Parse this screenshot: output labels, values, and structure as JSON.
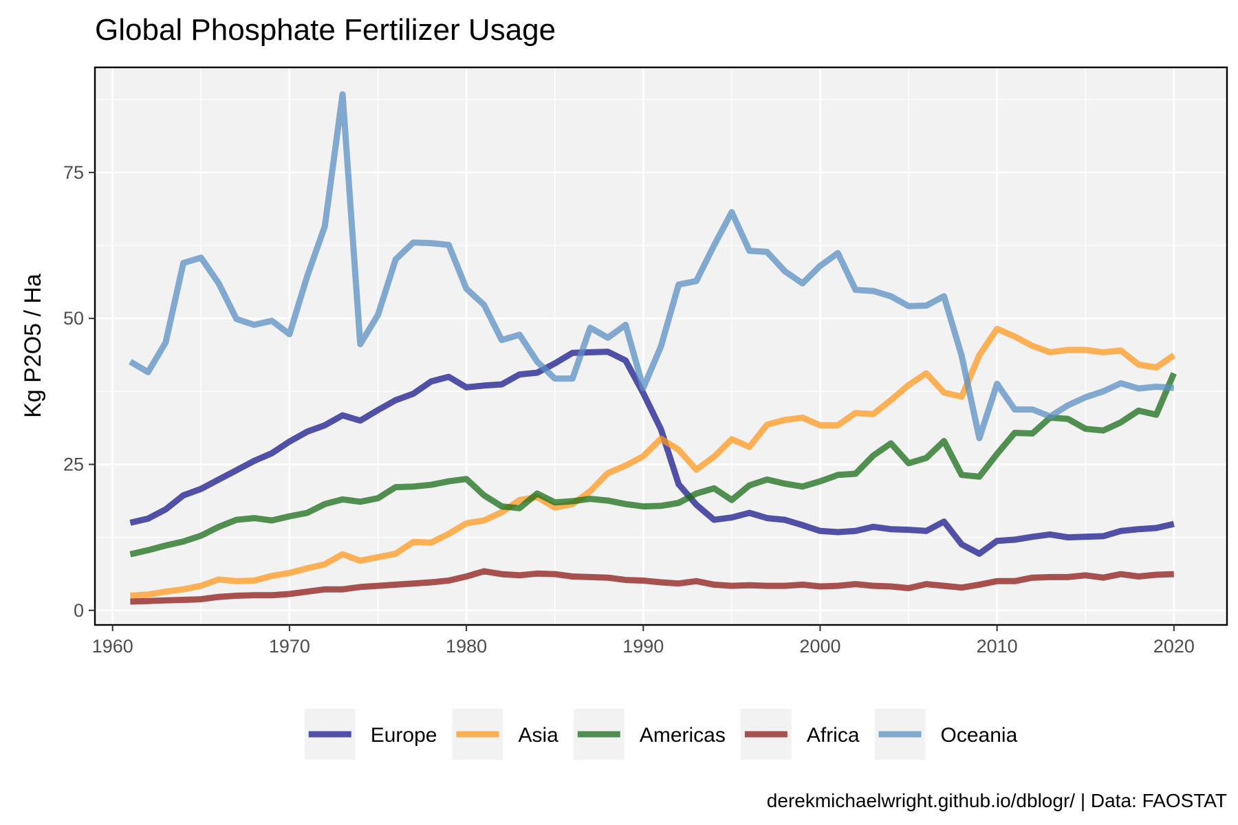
{
  "chart_data": {
    "type": "line",
    "title": "Global Phosphate Fertilizer Usage",
    "xlabel": "",
    "ylabel": "Kg P2O5 / Ha",
    "caption": "derekmichaelwright.github.io/dblogr/ | Data: FAOSTAT",
    "xlim": [
      1959,
      2023
    ],
    "ylim": [
      -2.5,
      93
    ],
    "x_ticks": [
      1960,
      1970,
      1980,
      1990,
      2000,
      2010,
      2020
    ],
    "y_ticks": [
      0,
      25,
      50,
      75
    ],
    "grid": true,
    "legend_position": "bottom",
    "x": [
      1961,
      1962,
      1963,
      1964,
      1965,
      1966,
      1967,
      1968,
      1969,
      1970,
      1971,
      1972,
      1973,
      1974,
      1975,
      1976,
      1977,
      1978,
      1979,
      1980,
      1981,
      1982,
      1983,
      1984,
      1985,
      1986,
      1987,
      1988,
      1989,
      1990,
      1991,
      1992,
      1993,
      1994,
      1995,
      1996,
      1997,
      1998,
      1999,
      2000,
      2001,
      2002,
      2003,
      2004,
      2005,
      2006,
      2007,
      2008,
      2009,
      2010,
      2011,
      2012,
      2013,
      2014,
      2015,
      2016,
      2017,
      2018,
      2019,
      2020
    ],
    "series": [
      {
        "name": "Europe",
        "color": "#1a1a8c",
        "values": [
          15.0,
          15.7,
          17.3,
          19.7,
          20.8,
          22.4,
          24.0,
          25.6,
          26.9,
          28.9,
          30.6,
          31.7,
          33.4,
          32.5,
          34.3,
          36.0,
          37.1,
          39.2,
          40.0,
          38.2,
          38.5,
          38.7,
          40.4,
          40.7,
          42.3,
          44.1,
          44.2,
          44.3,
          42.8,
          37.2,
          31.0,
          21.6,
          18.1,
          15.5,
          15.9,
          16.7,
          15.8,
          15.5,
          14.6,
          13.6,
          13.4,
          13.6,
          14.3,
          13.9,
          13.8,
          13.6,
          15.2,
          11.3,
          9.7,
          11.9,
          12.1,
          12.6,
          13.0,
          12.5,
          12.6,
          12.7,
          13.6,
          13.9,
          14.1,
          14.8
        ]
      },
      {
        "name": "Asia",
        "color": "#ff9922",
        "values": [
          2.5,
          2.7,
          3.2,
          3.6,
          4.2,
          5.3,
          5.0,
          5.1,
          5.9,
          6.4,
          7.2,
          7.9,
          9.6,
          8.5,
          9.1,
          9.7,
          11.7,
          11.6,
          13.1,
          14.9,
          15.4,
          16.8,
          18.9,
          19.4,
          17.6,
          18.2,
          20.4,
          23.5,
          24.8,
          26.4,
          29.4,
          27.5,
          24.1,
          26.3,
          29.3,
          28.0,
          31.8,
          32.6,
          33.0,
          31.7,
          31.7,
          33.8,
          33.6,
          36.0,
          38.6,
          40.6,
          37.3,
          36.6,
          43.7,
          48.2,
          46.9,
          45.3,
          44.2,
          44.6,
          44.6,
          44.2,
          44.5,
          42.1,
          41.6,
          43.7
        ]
      },
      {
        "name": "Americas",
        "color": "#1a6e1a",
        "values": [
          9.6,
          10.3,
          11.1,
          11.8,
          12.8,
          14.3,
          15.5,
          15.8,
          15.4,
          16.1,
          16.7,
          18.2,
          19.0,
          18.6,
          19.2,
          21.1,
          21.2,
          21.5,
          22.1,
          22.5,
          19.7,
          17.8,
          17.5,
          20.0,
          18.5,
          18.7,
          19.1,
          18.8,
          18.2,
          17.8,
          17.9,
          18.4,
          20.0,
          20.9,
          18.9,
          21.4,
          22.4,
          21.7,
          21.2,
          22.1,
          23.2,
          23.4,
          26.5,
          28.6,
          25.2,
          26.1,
          29.0,
          23.2,
          22.9,
          26.8,
          30.4,
          30.3,
          33.0,
          32.8,
          31.1,
          30.8,
          32.2,
          34.2,
          33.5,
          40.6
        ]
      },
      {
        "name": "Africa",
        "color": "#8c1a1a",
        "values": [
          1.5,
          1.6,
          1.7,
          1.8,
          1.9,
          2.3,
          2.5,
          2.6,
          2.6,
          2.8,
          3.2,
          3.6,
          3.6,
          4.0,
          4.2,
          4.4,
          4.6,
          4.8,
          5.1,
          5.8,
          6.7,
          6.2,
          6.0,
          6.3,
          6.2,
          5.8,
          5.7,
          5.6,
          5.2,
          5.1,
          4.8,
          4.6,
          5.0,
          4.4,
          4.2,
          4.3,
          4.2,
          4.2,
          4.4,
          4.1,
          4.2,
          4.5,
          4.2,
          4.1,
          3.8,
          4.5,
          4.2,
          3.9,
          4.4,
          5.0,
          5.0,
          5.6,
          5.7,
          5.7,
          6.0,
          5.6,
          6.2,
          5.8,
          6.1,
          6.2
        ]
      },
      {
        "name": "Oceania",
        "color": "#5b8fc2",
        "values": [
          42.6,
          40.8,
          45.9,
          59.5,
          60.4,
          56.0,
          49.9,
          48.9,
          49.6,
          47.3,
          57.2,
          65.8,
          88.4,
          45.6,
          50.6,
          60.1,
          63.0,
          62.9,
          62.6,
          55.1,
          52.3,
          46.3,
          47.2,
          42.6,
          39.7,
          39.7,
          48.4,
          46.7,
          48.9,
          38.1,
          45.2,
          55.8,
          56.4,
          62.5,
          68.2,
          61.6,
          61.4,
          58.1,
          56.0,
          59.0,
          61.2,
          54.9,
          54.7,
          53.8,
          52.1,
          52.2,
          53.8,
          43.6,
          29.5,
          38.8,
          34.4,
          34.4,
          33.2,
          35.1,
          36.5,
          37.5,
          38.9,
          38.0,
          38.3,
          38.1
        ]
      }
    ]
  }
}
